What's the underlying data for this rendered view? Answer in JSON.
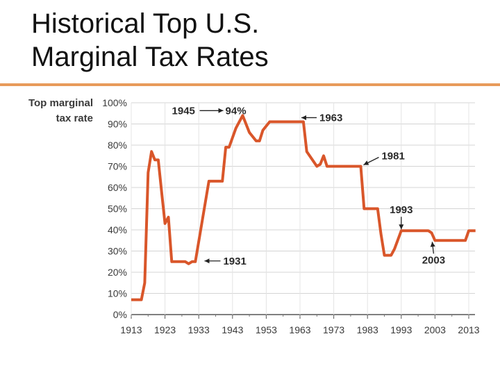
{
  "slide": {
    "title_line1": "Historical Top U.S.",
    "title_line2": "Marginal Tax Rates",
    "accent_color": "#e89a5a"
  },
  "chart_data": {
    "type": "line",
    "ylabel_line1": "Top marginal",
    "ylabel_line2": "tax rate",
    "xlim": [
      1913,
      2013
    ],
    "ylim": [
      0,
      100
    ],
    "x_ticks": [
      1913,
      1923,
      1933,
      1943,
      1953,
      1963,
      1973,
      1983,
      1993,
      2003,
      2013
    ],
    "y_ticks": [
      "0%",
      "10%",
      "20%",
      "30%",
      "40%",
      "50%",
      "60%",
      "70%",
      "80%",
      "90%",
      "100%"
    ],
    "grid": true,
    "line_color": "#d9562a",
    "x": [
      1913,
      1916,
      1917,
      1918,
      1919,
      1920,
      1921,
      1922,
      1923,
      1924,
      1925,
      1926,
      1929,
      1930,
      1931,
      1932,
      1936,
      1940,
      1941,
      1942,
      1944,
      1946,
      1948,
      1950,
      1951,
      1952,
      1954,
      1964,
      1965,
      1968,
      1969,
      1970,
      1971,
      1981,
      1982,
      1986,
      1987,
      1988,
      1990,
      1991,
      1993,
      2001,
      2002,
      2003,
      2012,
      2013,
      2015
    ],
    "values": [
      7,
      7,
      15,
      67,
      77,
      73,
      73,
      58,
      43,
      46,
      25,
      25,
      25,
      24,
      25,
      25,
      63,
      63,
      79,
      79,
      88,
      94,
      86,
      82,
      82,
      87,
      91,
      91,
      77,
      70,
      71,
      75,
      70,
      70,
      50,
      50,
      38,
      28,
      28,
      31,
      39.6,
      39.6,
      38.6,
      35,
      35,
      39.6,
      39.6
    ],
    "annotations": [
      {
        "label": "1945",
        "suffix": "94%",
        "year": 1945,
        "value": 94,
        "arrow": "right"
      },
      {
        "label": "1963",
        "year": 1963,
        "value": 91,
        "arrow": "left"
      },
      {
        "label": "1981",
        "year": 1981,
        "value": 70,
        "arrow": "left-down"
      },
      {
        "label": "1993",
        "year": 1993,
        "value": 39.6,
        "arrow": "down"
      },
      {
        "label": "2003",
        "year": 2003,
        "value": 35,
        "arrow": "up"
      },
      {
        "label": "1931",
        "year": 1931,
        "value": 25,
        "arrow": "left"
      }
    ]
  }
}
